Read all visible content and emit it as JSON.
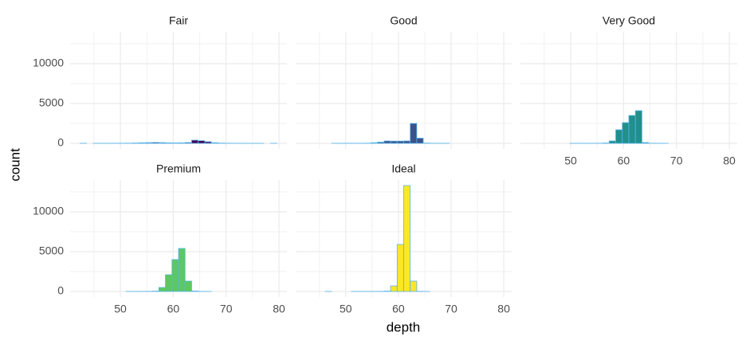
{
  "chart_data": [
    {
      "type": "histogram",
      "title": "Fair",
      "color": "#440154",
      "edgecolor": "#56B4E9",
      "bins": [
        42.38,
        43.62,
        44.86,
        46.1,
        47.34,
        48.59,
        49.83,
        51.07,
        52.31,
        53.55,
        54.79,
        56.03,
        57.28,
        58.52,
        59.76,
        61.0,
        62.24,
        63.48,
        64.72,
        65.97,
        67.21,
        68.45,
        69.69,
        70.93,
        72.17,
        73.41,
        74.66,
        75.9,
        77.14,
        78.38,
        79.62
      ],
      "values": [
        2,
        0,
        1,
        2,
        3,
        5,
        10,
        20,
        40,
        70,
        90,
        110,
        90,
        60,
        50,
        60,
        100,
        400,
        330,
        200,
        80,
        30,
        15,
        5,
        4,
        2,
        1,
        1,
        0,
        1
      ],
      "xlim": [
        40.5,
        81.5
      ],
      "ylim": [
        -700,
        14000
      ],
      "xticks": [
        50,
        60,
        70,
        80
      ],
      "yticks": [
        0,
        5000,
        10000
      ],
      "grid": true
    },
    {
      "type": "histogram",
      "title": "Good",
      "color": "#3B528B",
      "edgecolor": "#56B4E9",
      "bins": [
        42.38,
        43.62,
        44.86,
        46.1,
        47.34,
        48.59,
        49.83,
        51.07,
        52.31,
        53.55,
        54.79,
        56.03,
        57.28,
        58.52,
        59.76,
        61.0,
        62.24,
        63.48,
        64.72,
        65.97,
        67.21,
        68.45,
        69.69,
        70.93,
        72.17,
        73.41,
        74.66,
        75.9,
        77.14,
        78.38,
        79.62
      ],
      "values": [
        0,
        0,
        0,
        0,
        1,
        2,
        3,
        5,
        10,
        20,
        80,
        150,
        300,
        280,
        280,
        300,
        2500,
        650,
        30,
        5,
        2,
        1,
        0,
        0,
        0,
        0,
        0,
        0,
        0,
        0
      ],
      "xlim": [
        40.5,
        81.5
      ],
      "ylim": [
        -700,
        14000
      ],
      "xticks": [
        50,
        60,
        70,
        80
      ],
      "yticks": [
        0,
        5000,
        10000
      ],
      "grid": true
    },
    {
      "type": "histogram",
      "title": "Very Good",
      "color": "#21908C",
      "edgecolor": "#56B4E9",
      "bins": [
        42.38,
        43.62,
        44.86,
        46.1,
        47.34,
        48.59,
        49.83,
        51.07,
        52.31,
        53.55,
        54.79,
        56.03,
        57.28,
        58.52,
        59.76,
        61.0,
        62.24,
        63.48,
        64.72,
        65.97,
        67.21,
        68.45,
        69.69,
        70.93,
        72.17,
        73.41,
        74.66,
        75.9,
        77.14,
        78.38,
        79.62
      ],
      "values": [
        0,
        0,
        0,
        0,
        0,
        0,
        1,
        2,
        3,
        5,
        10,
        40,
        300,
        1700,
        2600,
        3500,
        4100,
        100,
        10,
        3,
        1,
        0,
        0,
        0,
        0,
        0,
        0,
        0,
        0,
        0
      ],
      "xlim": [
        40.5,
        81.5
      ],
      "ylim": [
        -700,
        14000
      ],
      "xticks": [
        50,
        60,
        70,
        80
      ],
      "yticks": [
        0,
        5000,
        10000
      ],
      "grid": true
    },
    {
      "type": "histogram",
      "title": "Premium",
      "color": "#5DC863",
      "edgecolor": "#56B4E9",
      "bins": [
        42.38,
        43.62,
        44.86,
        46.1,
        47.34,
        48.59,
        49.83,
        51.07,
        52.31,
        53.55,
        54.79,
        56.03,
        57.28,
        58.52,
        59.76,
        61.0,
        62.24,
        63.48,
        64.72,
        65.97,
        67.21,
        68.45,
        69.69,
        70.93,
        72.17,
        73.41,
        74.66,
        75.9,
        77.14,
        78.38,
        79.62
      ],
      "values": [
        0,
        0,
        0,
        0,
        0,
        0,
        0,
        1,
        2,
        4,
        10,
        40,
        500,
        2100,
        4000,
        5400,
        1300,
        50,
        5,
        1,
        0,
        0,
        0,
        0,
        0,
        0,
        0,
        0,
        0,
        0
      ],
      "xlim": [
        40.5,
        81.5
      ],
      "ylim": [
        -700,
        14000
      ],
      "xticks": [
        50,
        60,
        70,
        80
      ],
      "yticks": [
        0,
        5000,
        10000
      ],
      "grid": true
    },
    {
      "type": "histogram",
      "title": "Ideal",
      "color": "#FDE725",
      "edgecolor": "#56B4E9",
      "bins": [
        42.38,
        43.62,
        44.86,
        46.1,
        47.34,
        48.59,
        49.83,
        51.07,
        52.31,
        53.55,
        54.79,
        56.03,
        57.28,
        58.52,
        59.76,
        61.0,
        62.24,
        63.48,
        64.72,
        65.97,
        67.21,
        68.45,
        69.69,
        70.93,
        72.17,
        73.41,
        74.66,
        75.9,
        77.14,
        78.38,
        79.62
      ],
      "values": [
        0,
        0,
        0,
        1,
        0,
        0,
        0,
        1,
        1,
        2,
        3,
        10,
        40,
        700,
        5900,
        13300,
        1300,
        10,
        1,
        0,
        0,
        0,
        0,
        0,
        0,
        0,
        0,
        0,
        0,
        0
      ],
      "xlim": [
        40.5,
        81.5
      ],
      "ylim": [
        -700,
        14000
      ],
      "xticks": [
        50,
        60,
        70,
        80
      ],
      "yticks": [
        0,
        5000,
        10000
      ],
      "grid": true
    }
  ],
  "xlabel": "depth",
  "ylabel": "count"
}
